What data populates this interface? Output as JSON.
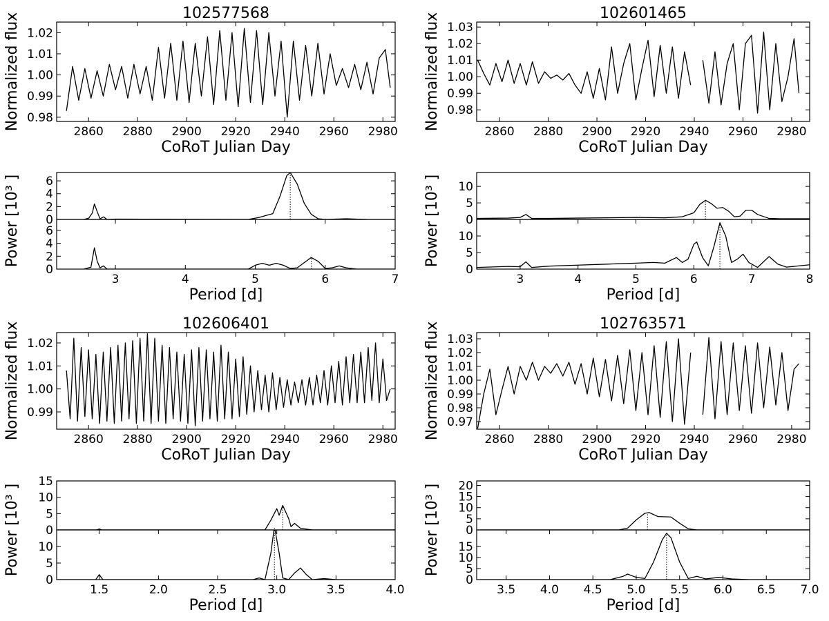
{
  "chart_data": [
    {
      "type": "line",
      "title": "102577568",
      "xlabel": "CoRoT Julian Day",
      "ylabel": "Normalized flux",
      "x": [
        2851,
        2853.5,
        2856,
        2858.5,
        2861,
        2863.5,
        2866,
        2868.5,
        2871,
        2873.5,
        2876,
        2878.5,
        2881,
        2883.5,
        2886,
        2888.5,
        2891,
        2893.5,
        2896,
        2898.5,
        2901,
        2903.5,
        2906,
        2908.5,
        2911,
        2913.5,
        2916,
        2918.5,
        2921,
        2923.5,
        2926,
        2928.5,
        2931,
        2933.5,
        2936,
        2938.5,
        2941,
        2943.5,
        2946,
        2948.5,
        2951,
        2953.5,
        2956,
        2958.5,
        2961,
        2963.5,
        2966,
        2968.5,
        2971,
        2973.5,
        2976,
        2978.5,
        2981,
        2983
      ],
      "values": [
        0.983,
        1.004,
        0.988,
        1.003,
        0.989,
        1.002,
        0.99,
        1.005,
        0.993,
        1.004,
        0.989,
        1.005,
        0.991,
        1.004,
        0.988,
        1.013,
        0.989,
        1.015,
        0.988,
        1.016,
        0.987,
        1.015,
        0.99,
        1.018,
        0.986,
        1.021,
        0.988,
        1.02,
        0.985,
        1.022,
        0.987,
        1.021,
        0.986,
        1.02,
        0.99,
        1.016,
        0.98,
        1.016,
        0.988,
        1.014,
        0.99,
        1.015,
        0.991,
        1.01,
        0.995,
        1.003,
        0.994,
        1.005,
        0.993,
        1.006,
        0.991,
        1.008,
        1.012,
        0.994
      ],
      "xlim": [
        2847,
        2985
      ],
      "ylim": [
        0.978,
        1.025
      ],
      "xticks": [
        2860,
        2880,
        2900,
        2920,
        2940,
        2960,
        2980
      ],
      "yticks": [
        0.98,
        0.99,
        {
          "value": 1,
          "label": "1.00"
        },
        1.01,
        1.02
      ],
      "color": "#000000"
    },
    {
      "type": "line",
      "x": [
        2.55,
        2.62,
        2.67,
        2.7,
        2.74,
        2.78,
        2.83,
        2.88,
        3.0,
        4.9,
        5.05,
        5.15,
        5.25,
        5.35,
        5.45,
        5.5,
        5.6,
        5.7,
        5.8,
        5.9,
        6.0,
        6.3,
        6.6
      ],
      "values": [
        0,
        0.2,
        1.0,
        2.4,
        1.2,
        0.1,
        0.4,
        0,
        0.05,
        0,
        0.3,
        0.6,
        0.9,
        3.5,
        6.8,
        7.3,
        5.5,
        2.5,
        0.8,
        0.1,
        0,
        0.1,
        0
      ],
      "xlim": [
        2.16,
        7
      ],
      "ylim": [
        0,
        7.3
      ],
      "yticks": [
        0,
        2,
        4,
        6
      ],
      "best_period": 5.5,
      "color": "#000000"
    },
    {
      "type": "line",
      "xlabel": "Period [d]",
      "ylabel": "Power [10³ ]",
      "x": [
        2.55,
        2.65,
        2.7,
        2.74,
        2.78,
        2.83,
        2.88,
        3.0,
        4.9,
        5.0,
        5.1,
        5.2,
        5.3,
        5.4,
        5.5,
        5.6,
        5.7,
        5.8,
        5.9,
        6.0,
        6.1,
        6.2,
        6.3,
        6.45,
        7.0
      ],
      "values": [
        0,
        0.3,
        3.3,
        1.2,
        0.2,
        0.5,
        0,
        0,
        0,
        0.6,
        0.9,
        0.6,
        0.9,
        0.6,
        0.1,
        0.2,
        1.0,
        1.8,
        1.2,
        0.1,
        0.2,
        0.5,
        0.2,
        0,
        0
      ],
      "xlim": [
        2.16,
        7
      ],
      "ylim": [
        0,
        7.7
      ],
      "xticks": [
        3,
        4,
        5,
        6,
        7
      ],
      "yticks": [
        0,
        2,
        4,
        6
      ],
      "best_period": 5.8,
      "color": "#000000"
    },
    {
      "type": "line",
      "title": "102601465",
      "xlabel": "CoRoT Julian Day",
      "ylabel": "Normalized flux",
      "x": [
        2851,
        2853.5,
        2856,
        2858.5,
        2861,
        2863.5,
        2866,
        2868.5,
        2871,
        2873.5,
        2876,
        2878.5,
        2881,
        2883.5,
        2886,
        2888.5,
        2891,
        2893.5,
        2896,
        2898.5,
        2901,
        2903.5,
        2906,
        2908.5,
        2911,
        2913.5,
        2916,
        2918.5,
        2921,
        2923.5,
        2926,
        2928.5,
        2931,
        2933.5,
        2936,
        2938.5,
        2941,
        2943.5,
        2946,
        2948.5,
        2951,
        2953.5,
        2956,
        2958.5,
        2961,
        2963.5,
        2966,
        2968.5,
        2971,
        2973.5,
        2976,
        2978.5,
        2981,
        2983
      ],
      "values": [
        1.01,
        1.002,
        0.995,
        1.008,
        0.997,
        1.01,
        0.996,
        1.008,
        0.995,
        1.009,
        0.996,
        1.003,
        0.999,
        1.001,
        0.998,
        1.002,
        0.995,
        0.99,
        1.003,
        0.987,
        1.005,
        0.986,
        1.018,
        0.99,
        1.008,
        1.02,
        0.986,
        1.005,
        1.022,
        0.988,
        1.019,
        0.99,
        1.018,
        0.987,
        1.015,
        0.995,
        null,
        1.01,
        0.984,
        1.015,
        0.983,
        1.008,
        1.02,
        0.98,
        1.02,
        1.025,
        0.978,
        1.027,
        0.98,
        1.02,
        0.985,
        1.0,
        1.023,
        0.99
      ],
      "xlim": [
        2850.6,
        2987.4
      ],
      "ylim": [
        0.973,
        1.033
      ],
      "xticks": [
        2860,
        2880,
        2900,
        2920,
        2940,
        2960,
        2980
      ],
      "yticks": [
        0.98,
        0.99,
        {
          "value": 1,
          "label": "1.00"
        },
        1.01,
        1.02,
        1.03
      ],
      "color": "#000000"
    },
    {
      "type": "line",
      "x": [
        2.25,
        2.8,
        3.0,
        3.1,
        3.2,
        3.5,
        4.0,
        4.5,
        5.0,
        5.5,
        5.8,
        6.0,
        6.1,
        6.2,
        6.3,
        6.4,
        6.5,
        6.6,
        6.7,
        6.8,
        6.9,
        7.0,
        7.1,
        7.3,
        7.5,
        8.0
      ],
      "values": [
        0.3,
        0.4,
        0.6,
        1.5,
        0.3,
        0.3,
        0.4,
        0.5,
        0.6,
        0.5,
        0.8,
        2.0,
        4.5,
        5.8,
        4.8,
        3.4,
        3.6,
        2.5,
        0.8,
        1.0,
        2.8,
        2.8,
        1.5,
        0.3,
        0.2,
        0.2
      ],
      "xlim": [
        2.25,
        8
      ],
      "ylim": [
        0,
        14.2
      ],
      "yticks": [
        0,
        5,
        10
      ],
      "best_period": 6.2,
      "color": "#000000"
    },
    {
      "type": "line",
      "xlabel": "Period [d]",
      "ylabel": "Power [10³ ]",
      "x": [
        2.25,
        2.8,
        3.0,
        3.1,
        3.2,
        3.5,
        4.0,
        4.5,
        5.0,
        5.3,
        5.5,
        5.7,
        5.8,
        5.9,
        6.0,
        6.05,
        6.15,
        6.25,
        6.35,
        6.45,
        6.55,
        6.65,
        6.75,
        6.85,
        6.95,
        7.1,
        7.3,
        7.45,
        7.6,
        8.0
      ],
      "values": [
        0.5,
        0.8,
        0.7,
        2.2,
        0.5,
        0.9,
        1.2,
        1.5,
        1.8,
        2.0,
        1.8,
        3.5,
        2.0,
        3.0,
        7.5,
        8.2,
        3.5,
        1.0,
        7.0,
        14.0,
        10.0,
        2.0,
        3.0,
        4.5,
        2.0,
        0.5,
        3.8,
        1.5,
        0.6,
        1.3
      ],
      "xlim": [
        2.25,
        8
      ],
      "ylim": [
        0,
        15
      ],
      "xticks": [
        3,
        4,
        5,
        6,
        7,
        8
      ],
      "yticks": [
        0,
        5,
        10
      ],
      "best_period": 6.45,
      "color": "#000000"
    },
    {
      "type": "line",
      "title": "102606401",
      "xlabel": "CoRoT Julian Day",
      "ylabel": "Normalized flux",
      "x": [
        2851,
        2852.5,
        2854,
        2855.5,
        2857,
        2858.5,
        2860,
        2861.5,
        2863,
        2864.5,
        2866,
        2867.5,
        2869,
        2870.5,
        2872,
        2873.5,
        2875,
        2876.5,
        2878,
        2879.5,
        2881,
        2882.5,
        2884,
        2885.5,
        2887,
        2888.5,
        2890,
        2891.5,
        2893,
        2894.5,
        2896,
        2897.5,
        2899,
        2900.5,
        2902,
        2903.5,
        2905,
        2906.5,
        2908,
        2909.5,
        2911,
        2912.5,
        2914,
        2915.5,
        2917,
        2918.5,
        2920,
        2921.5,
        2923,
        2924.5,
        2926,
        2927.5,
        2929,
        2930.5,
        2932,
        2933.5,
        2935,
        2936.5,
        2938,
        2939.5,
        2941,
        2942.5,
        2944,
        2945.5,
        2947,
        2948.5,
        2950,
        2951.5,
        2953,
        2954.5,
        2956,
        2957.5,
        2959,
        2960.5,
        2962,
        2963.5,
        2965,
        2966.5,
        2968,
        2969.5,
        2971,
        2972.5,
        2974,
        2975.5,
        2977,
        2978.5,
        2980,
        2981.5,
        2983
      ],
      "values": [
        1.008,
        0.987,
        1.022,
        0.986,
        1.018,
        0.988,
        1.017,
        0.987,
        1.015,
        0.985,
        1.016,
        0.986,
        1.018,
        0.985,
        1.019,
        0.986,
        1.02,
        0.987,
        1.021,
        0.985,
        1.022,
        0.986,
        1.024,
        0.985,
        1.022,
        0.986,
        1.019,
        0.985,
        1.018,
        0.987,
        1.016,
        0.986,
        1.015,
        0.985,
        1.017,
        0.984,
        1.018,
        0.986,
        1.017,
        0.987,
        1.016,
        0.986,
        1.019,
        0.987,
        1.016,
        0.987,
        1.013,
        0.988,
        1.014,
        0.989,
        1.01,
        0.99,
        1.008,
        0.991,
        1.006,
        0.99,
        1.007,
        0.991,
        1.005,
        0.992,
        1.004,
        0.993,
        1.003,
        0.994,
        1.004,
        0.993,
        1.005,
        0.993,
        1.006,
        0.994,
        1.008,
        0.993,
        1.01,
        0.994,
        1.012,
        0.993,
        1.014,
        0.994,
        1.015,
        0.994,
        1.016,
        0.994,
        1.018,
        0.995,
        1.02,
        0.994,
        1.013,
        0.995,
        1.0
      ],
      "xlim": [
        2847,
        2985
      ],
      "ylim": [
        0.9825,
        1.0245
      ],
      "xticks": [
        2860,
        2880,
        2900,
        2920,
        2940,
        2960,
        2980
      ],
      "yticks": [
        0.99,
        {
          "value": 1,
          "label": "1.00"
        },
        1.01,
        1.02
      ],
      "color": "#000000"
    },
    {
      "type": "line",
      "x": [
        1.15,
        1.48,
        1.5,
        1.52,
        2.9,
        2.95,
        3.0,
        3.02,
        3.05,
        3.1,
        3.12,
        3.15,
        3.2,
        3.3,
        4.0
      ],
      "values": [
        0,
        0,
        0.3,
        0,
        0,
        3,
        6.5,
        4.5,
        7.5,
        3.5,
        1.0,
        2.0,
        0.5,
        0,
        0
      ],
      "xlim": [
        1.14,
        4
      ],
      "ylim": [
        0,
        15
      ],
      "yticks": [
        0,
        5,
        10,
        15
      ],
      "best_period": 3.05,
      "color": "#000000"
    },
    {
      "type": "line",
      "xlabel": "Period [d]",
      "ylabel": "Power [10³ ]",
      "x": [
        1.15,
        1.47,
        1.5,
        1.53,
        2.8,
        2.85,
        2.9,
        2.95,
        2.98,
        3.02,
        3.05,
        3.1,
        3.15,
        3.2,
        3.25,
        3.3,
        3.4,
        3.5,
        4.0
      ],
      "values": [
        0,
        0,
        1.5,
        0,
        0,
        0.5,
        0,
        8,
        16,
        8,
        0.5,
        0,
        2,
        3.5,
        1.5,
        0,
        0.3,
        0,
        0
      ],
      "xlim": [
        1.14,
        4
      ],
      "ylim": [
        0,
        15
      ],
      "xticks": [
        1.5,
        {
          "value": 2,
          "label": "2.0"
        },
        2.5,
        {
          "value": 3,
          "label": "3.0"
        },
        3.5,
        {
          "value": 4,
          "label": "4.0"
        }
      ],
      "yticks": [
        0,
        5,
        10
      ],
      "best_period": 2.98,
      "color": "#000000"
    },
    {
      "type": "line",
      "title": "102763571",
      "xlabel": "CoRoT Julian Day",
      "ylabel": "Normalized flux",
      "x": [
        2851,
        2853.5,
        2856,
        2858.5,
        2861,
        2863.5,
        2866,
        2868.5,
        2871,
        2873.5,
        2876,
        2878.5,
        2881,
        2883.5,
        2886,
        2888.5,
        2891,
        2893.5,
        2896,
        2898.5,
        2901,
        2903.5,
        2906,
        2908.5,
        2911,
        2913.5,
        2916,
        2918.5,
        2921,
        2923.5,
        2926,
        2928.5,
        2931,
        2933.5,
        2936,
        2938.5,
        2941,
        2943.5,
        2946,
        2948.5,
        2951,
        2953.5,
        2956,
        2958.5,
        2961,
        2963.5,
        2966,
        2968.5,
        2971,
        2973.5,
        2976,
        2978.5,
        2981,
        2983
      ],
      "values": [
        0.965,
        0.99,
        1.008,
        0.975,
        0.993,
        1.01,
        0.99,
        1.01,
        1.0,
        1.013,
        1.0,
        1.01,
        1.005,
        1.012,
        1.003,
        1.013,
        0.997,
        1.012,
        0.99,
        1.016,
        0.988,
        1.015,
        0.985,
        1.018,
        0.983,
        1.022,
        0.978,
        1.02,
        0.975,
        1.025,
        0.973,
        1.028,
        0.97,
        1.03,
        0.968,
        1.02,
        null,
        0.975,
        1.031,
        0.972,
        1.028,
        0.975,
        1.027,
        0.978,
        1.025,
        0.976,
        1.027,
        0.98,
        1.024,
        0.982,
        1.02,
        0.978,
        1.008,
        1.012
      ],
      "xlim": [
        2850.6,
        2987.4
      ],
      "ylim": [
        0.9645,
        1.0345
      ],
      "xticks": [
        2860,
        2880,
        2900,
        2920,
        2940,
        2960,
        2980
      ],
      "yticks": [
        0.97,
        0.98,
        0.99,
        {
          "value": 1,
          "label": "1.00"
        },
        1.01,
        1.02,
        1.03
      ],
      "color": "#000000"
    },
    {
      "type": "line",
      "x": [
        3.2,
        4.8,
        4.9,
        5.0,
        5.1,
        5.15,
        5.25,
        5.4,
        5.5,
        5.6,
        5.7,
        7.0
      ],
      "values": [
        0,
        0,
        0.8,
        4.5,
        7.5,
        7.8,
        6.0,
        5.8,
        3.0,
        0.5,
        0,
        0
      ],
      "xlim": [
        3.16,
        7
      ],
      "ylim": [
        0,
        22
      ],
      "yticks": [
        0,
        5,
        10,
        15,
        20
      ],
      "best_period": 5.13,
      "color": "#000000"
    },
    {
      "type": "line",
      "xlabel": "Period [d]",
      "ylabel": "Power [10³ ]",
      "x": [
        3.2,
        4.7,
        4.85,
        4.9,
        5.0,
        5.1,
        5.2,
        5.3,
        5.35,
        5.4,
        5.5,
        5.6,
        5.7,
        5.8,
        5.95,
        6.1,
        6.3,
        7.0
      ],
      "values": [
        0,
        0,
        1.5,
        2.5,
        1.0,
        0.5,
        8,
        18,
        21,
        19,
        8,
        0.5,
        1.5,
        0.3,
        1.0,
        0.3,
        0,
        0
      ],
      "xlim": [
        3.16,
        7
      ],
      "ylim": [
        0,
        22.5
      ],
      "xticks": [
        3.5,
        {
          "value": 4,
          "label": "4.0"
        },
        4.5,
        {
          "value": 5,
          "label": "5.0"
        },
        5.5,
        {
          "value": 6,
          "label": "6.0"
        },
        6.5,
        {
          "value": 7,
          "label": "7.0"
        }
      ],
      "yticks": [
        0,
        5,
        10,
        15
      ],
      "best_period": 5.35,
      "color": "#000000"
    }
  ]
}
